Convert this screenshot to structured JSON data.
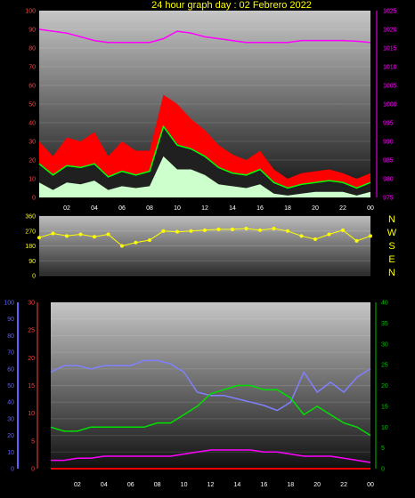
{
  "title": "24 hour graph day : 02 Febrero 2022",
  "colors": {
    "title": "#ffff00",
    "wind_gust": "#ff0000",
    "wind_avg": "#00ff00",
    "wind_min": "#ccffcc",
    "pressure": "#ff00ff",
    "direction": "#ffff00",
    "humidity": "#8080ff",
    "temperature": "#00e000",
    "dewpoint": "#ff00ff",
    "rain": "#ff0000",
    "left_axis": "#ff4040",
    "right_axis": "#ff00ff",
    "green_axis": "#00c000",
    "blue_axis": "#6060ff"
  },
  "x_ticks": [
    "02",
    "04",
    "06",
    "08",
    "10",
    "12",
    "14",
    "16",
    "18",
    "20",
    "22",
    "00"
  ],
  "compass": [
    "N",
    "W",
    "S",
    "E",
    "N"
  ],
  "chart_data": [
    {
      "type": "line",
      "y_left_ticks": [
        "0",
        "10",
        "20",
        "30",
        "40",
        "50",
        "60",
        "70",
        "80",
        "90",
        "100"
      ],
      "y_right_ticks": [
        "975",
        "980",
        "985",
        "990",
        "995",
        "1000",
        "1005",
        "1010",
        "1015",
        "1020",
        "1025"
      ],
      "ylim_left": [
        0,
        100
      ],
      "ylim_right": [
        975,
        1025
      ],
      "x": [
        0,
        1,
        2,
        3,
        4,
        5,
        6,
        7,
        8,
        9,
        10,
        11,
        12,
        13,
        14,
        15,
        16,
        17,
        18,
        19,
        20,
        21,
        22,
        23,
        24
      ],
      "series": [
        {
          "key": "gust",
          "values": [
            30,
            22,
            32,
            30,
            35,
            22,
            30,
            25,
            25,
            55,
            50,
            42,
            36,
            28,
            23,
            20,
            25,
            15,
            10,
            13,
            14,
            15,
            13,
            10,
            13
          ]
        },
        {
          "key": "avg",
          "values": [
            18,
            12,
            17,
            16,
            18,
            11,
            14,
            12,
            14,
            38,
            28,
            26,
            22,
            16,
            13,
            12,
            15,
            8,
            5,
            7,
            8,
            9,
            8,
            5,
            8
          ]
        },
        {
          "key": "min",
          "values": [
            8,
            4,
            8,
            7,
            9,
            4,
            6,
            5,
            6,
            22,
            15,
            15,
            12,
            7,
            6,
            5,
            7,
            2,
            1,
            2,
            3,
            3,
            3,
            1,
            3
          ]
        },
        {
          "key": "pressure",
          "values": [
            1020,
            1019.5,
            1019,
            1018,
            1017,
            1016.5,
            1016.5,
            1016.5,
            1016.5,
            1017.5,
            1019.5,
            1019,
            1018,
            1017.5,
            1017,
            1016.5,
            1016.5,
            1016.5,
            1016.5,
            1017,
            1017,
            1017,
            1017,
            1016.8,
            1016.5
          ]
        }
      ]
    },
    {
      "type": "scatter",
      "y_ticks": [
        "0",
        "90",
        "180",
        "270",
        "360"
      ],
      "ylim": [
        0,
        360
      ],
      "x": [
        0,
        1,
        2,
        3,
        4,
        5,
        6,
        7,
        8,
        9,
        10,
        11,
        12,
        13,
        14,
        15,
        16,
        17,
        18,
        19,
        20,
        21,
        22,
        23,
        24
      ],
      "values": [
        230,
        255,
        240,
        250,
        235,
        250,
        180,
        200,
        215,
        270,
        265,
        270,
        275,
        280,
        280,
        285,
        275,
        285,
        270,
        240,
        220,
        250,
        275,
        210,
        240
      ]
    },
    {
      "type": "line",
      "y_left_ticks": [
        "0",
        "10",
        "20",
        "30",
        "40",
        "50",
        "60",
        "70",
        "80",
        "90",
        "100"
      ],
      "y_red_ticks": [
        "0",
        "5",
        "10",
        "15",
        "20",
        "25",
        "30"
      ],
      "y_right_ticks": [
        "0",
        "5",
        "10",
        "15",
        "20",
        "25",
        "30",
        "35",
        "40"
      ],
      "ylim_left": [
        0,
        100
      ],
      "ylim_red": [
        0,
        30
      ],
      "ylim_right": [
        0,
        40
      ],
      "x": [
        0,
        1,
        2,
        3,
        4,
        5,
        6,
        7,
        8,
        9,
        10,
        11,
        12,
        13,
        14,
        15,
        16,
        17,
        18,
        19,
        20,
        21,
        22,
        23,
        24
      ],
      "series": [
        {
          "key": "humidity",
          "axis": "left",
          "values": [
            58,
            62,
            62,
            60,
            62,
            62,
            62,
            65,
            65,
            63,
            58,
            46,
            44,
            44,
            42,
            40,
            38,
            35,
            40,
            58,
            46,
            52,
            46,
            55,
            60
          ]
        },
        {
          "key": "temperature",
          "axis": "right",
          "values": [
            10,
            9,
            9,
            10,
            10,
            10,
            10,
            10,
            11,
            11,
            13,
            15,
            18,
            19,
            20,
            20,
            19,
            19,
            17,
            13,
            15,
            13,
            11,
            10,
            8
          ]
        },
        {
          "key": "dewpoint",
          "axis": "right",
          "values": [
            2,
            2,
            2.5,
            2.5,
            3,
            3,
            3,
            3,
            3,
            3,
            3.5,
            4,
            4.5,
            4.5,
            4.5,
            4.5,
            4,
            4,
            3.5,
            3,
            3,
            3,
            2.5,
            2,
            1.5
          ]
        },
        {
          "key": "rain",
          "axis": "red",
          "values": [
            0,
            0,
            0,
            0,
            0,
            0,
            0,
            0,
            0,
            0,
            0,
            0,
            0,
            0,
            0,
            0,
            0,
            0,
            0,
            0,
            0,
            0,
            0,
            0,
            0
          ]
        }
      ]
    }
  ]
}
